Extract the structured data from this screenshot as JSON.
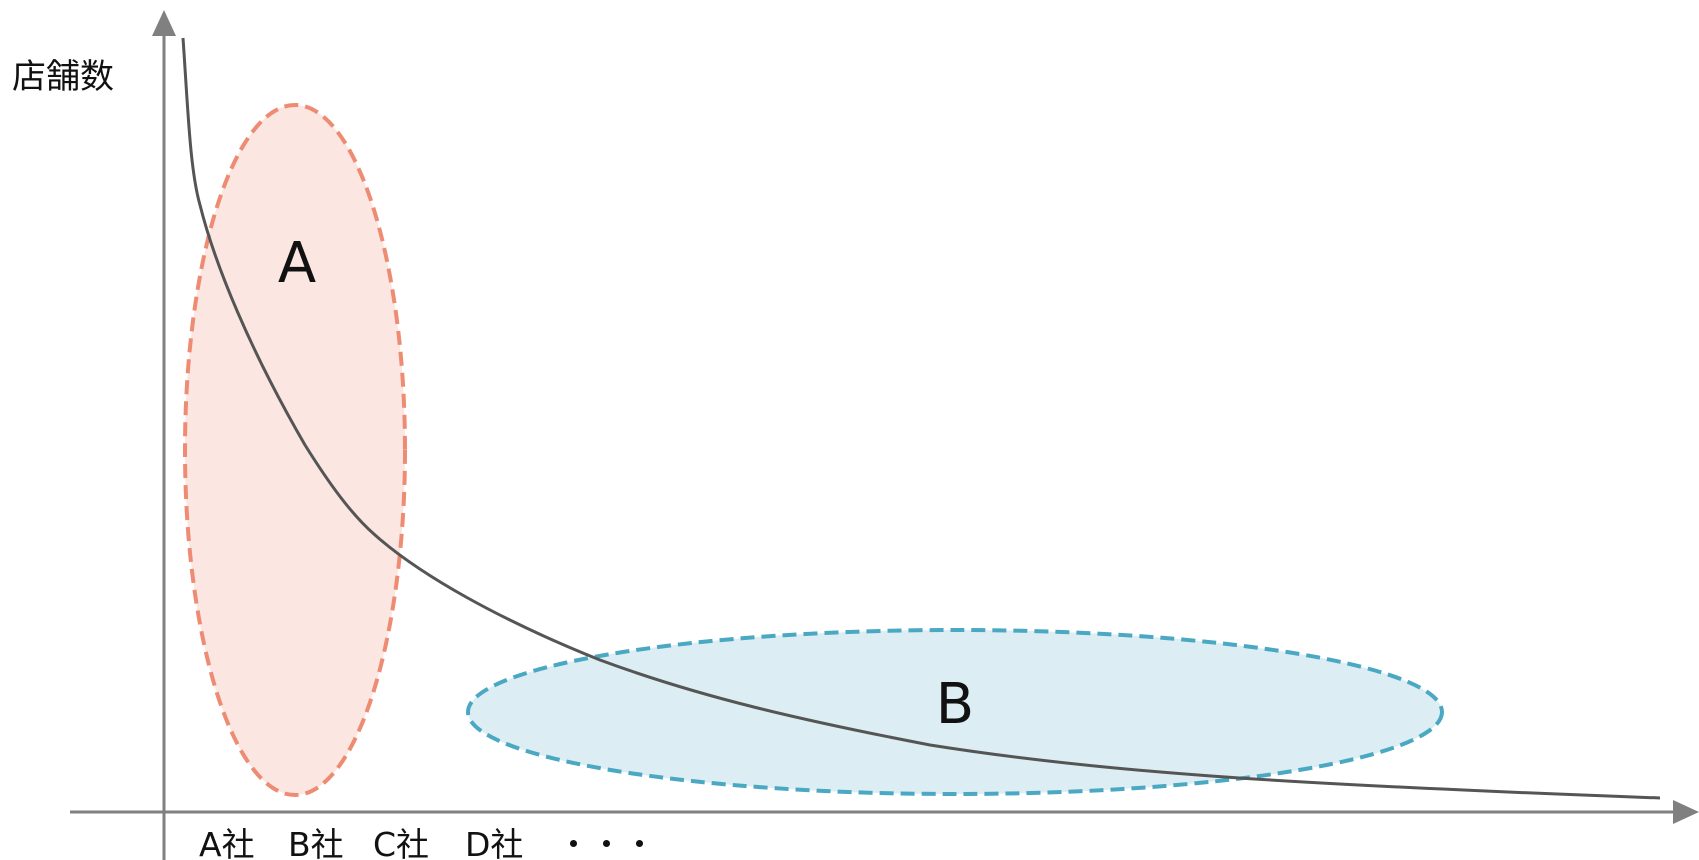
{
  "diagram": {
    "y_axis_label": "店舗数",
    "regions": [
      {
        "label": "A",
        "fill": "#fbe6e1",
        "stroke": "#ee8b73"
      },
      {
        "label": "B",
        "fill": "#dcedf3",
        "stroke": "#4aa8c3"
      }
    ],
    "x_categories": [
      "A社",
      "B社",
      "C社",
      "D社",
      "・・・"
    ],
    "colors": {
      "axis": "#808080",
      "curve": "#555555"
    }
  }
}
